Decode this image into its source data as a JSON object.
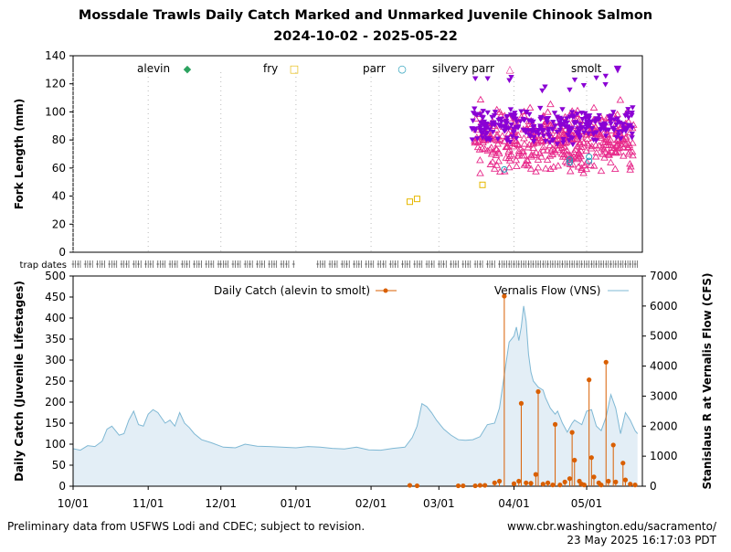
{
  "header": {
    "title": "Mossdale Trawls Daily Catch Marked and Unmarked Juvenile Chinook Salmon",
    "subtitle": "2024-10-02 - 2025-05-22"
  },
  "footer": {
    "left": "Preliminary data from USFWS Lodi and CDEC; subject to revision.",
    "right_line1": "www.cbr.washington.edu/sacramento/",
    "right_line2": "23 May 2025 16:17:03 PDT"
  },
  "colors": {
    "alevin": "#2ca25f",
    "fry": "#e6b800",
    "parr": "#1f9bb8",
    "silvery_parr": "#e7298a",
    "smolt": "#8a00d4",
    "catch": "#d95f02",
    "flow_line": "#7fb8d4",
    "flow_fill": "#e3eef6"
  },
  "chart_data": [
    {
      "type": "scatter",
      "ylabel": "Fork Length (mm)",
      "ylim": [
        0,
        140
      ],
      "yticks": [
        "0",
        "20",
        "40",
        "60",
        "80",
        "100",
        "120",
        "140"
      ],
      "legend": [
        {
          "name": "alevin",
          "marker": "◆"
        },
        {
          "name": "fry",
          "marker": "□"
        },
        {
          "name": "parr",
          "marker": "○"
        },
        {
          "name": "silvery parr",
          "marker": "△"
        },
        {
          "name": "smolt",
          "marker": "▼"
        }
      ],
      "series": [
        {
          "name": "fry",
          "points": [
            [
              "2025-02-17",
              36
            ],
            [
              "2025-02-20",
              38
            ],
            [
              "2025-03-19",
              48
            ]
          ]
        },
        {
          "name": "parr",
          "points": [
            [
              "2025-03-28",
              59
            ],
            [
              "2025-04-24",
              64
            ],
            [
              "2025-04-24",
              66
            ],
            [
              "2025-05-02",
              65
            ],
            [
              "2025-05-02",
              68
            ]
          ]
        },
        {
          "name": "silvery parr",
          "generated_range": [
            "2025-03-16",
            "2025-05-21"
          ],
          "ylim": [
            55,
            115
          ]
        },
        {
          "name": "smolt",
          "generated_range": [
            "2025-03-15",
            "2025-05-21"
          ],
          "ylim": [
            75,
            126
          ]
        }
      ]
    },
    {
      "type": "line",
      "xlabel": "",
      "ylabel": "Daily Catch (Juvenile Lifestages)",
      "y2label": "Stanislaus R at Vernalis Flow (CFS)",
      "ylim": [
        0,
        500
      ],
      "y2lim": [
        0,
        7000
      ],
      "xlim": [
        "2024-10-01",
        "2025-05-24"
      ],
      "xticks": [
        "10/01",
        "11/01",
        "12/01",
        "01/01",
        "02/01",
        "03/01",
        "04/01",
        "05/01"
      ],
      "yticks": [
        "0",
        "50",
        "100",
        "150",
        "200",
        "250",
        "300",
        "350",
        "400",
        "450",
        "500"
      ],
      "y2ticks": [
        "0",
        "1000",
        "2000",
        "3000",
        "4000",
        "5000",
        "6000",
        "7000"
      ],
      "trap_dates_label": "trap dates",
      "legend": [
        {
          "name": "Daily Catch (alevin to smolt)"
        },
        {
          "name": "Vernalis Flow (VNS)"
        }
      ],
      "series": [
        {
          "name": "Daily Catch (alevin to smolt)",
          "points": [
            [
              "2025-02-17",
              2
            ],
            [
              "2025-02-20",
              1
            ],
            [
              "2025-03-09",
              1
            ],
            [
              "2025-03-11",
              1
            ],
            [
              "2025-03-16",
              1
            ],
            [
              "2025-03-18",
              2
            ],
            [
              "2025-03-20",
              2
            ],
            [
              "2025-03-24",
              8
            ],
            [
              "2025-03-26",
              12
            ],
            [
              "2025-03-28",
              452
            ],
            [
              "2025-04-01",
              6
            ],
            [
              "2025-04-03",
              12
            ],
            [
              "2025-04-04",
              197
            ],
            [
              "2025-04-06",
              8
            ],
            [
              "2025-04-08",
              7
            ],
            [
              "2025-04-10",
              28
            ],
            [
              "2025-04-11",
              225
            ],
            [
              "2025-04-13",
              5
            ],
            [
              "2025-04-15",
              8
            ],
            [
              "2025-04-17",
              3
            ],
            [
              "2025-04-18",
              147
            ],
            [
              "2025-04-20",
              3
            ],
            [
              "2025-04-22",
              10
            ],
            [
              "2025-04-24",
              18
            ],
            [
              "2025-04-25",
              128
            ],
            [
              "2025-04-26",
              62
            ],
            [
              "2025-04-28",
              12
            ],
            [
              "2025-04-29",
              5
            ],
            [
              "2025-04-30",
              3
            ],
            [
              "2025-05-02",
              253
            ],
            [
              "2025-05-03",
              68
            ],
            [
              "2025-05-04",
              22
            ],
            [
              "2025-05-06",
              8
            ],
            [
              "2025-05-07",
              3
            ],
            [
              "2025-05-09",
              295
            ],
            [
              "2025-05-10",
              12
            ],
            [
              "2025-05-12",
              98
            ],
            [
              "2025-05-13",
              10
            ],
            [
              "2025-05-16",
              55
            ],
            [
              "2025-05-17",
              15
            ],
            [
              "2025-05-19",
              5
            ],
            [
              "2025-05-21",
              3
            ]
          ]
        },
        {
          "name": "Vernalis Flow (VNS)",
          "points": [
            [
              "2024-10-01",
              1250
            ],
            [
              "2024-10-04",
              1200
            ],
            [
              "2024-10-07",
              1350
            ],
            [
              "2024-10-10",
              1320
            ],
            [
              "2024-10-13",
              1500
            ],
            [
              "2024-10-15",
              1900
            ],
            [
              "2024-10-17",
              2000
            ],
            [
              "2024-10-20",
              1700
            ],
            [
              "2024-10-22",
              1750
            ],
            [
              "2024-10-24",
              2200
            ],
            [
              "2024-10-26",
              2500
            ],
            [
              "2024-10-28",
              2050
            ],
            [
              "2024-10-30",
              2000
            ],
            [
              "2024-11-01",
              2400
            ],
            [
              "2024-11-03",
              2550
            ],
            [
              "2024-11-05",
              2450
            ],
            [
              "2024-11-08",
              2100
            ],
            [
              "2024-11-10",
              2200
            ],
            [
              "2024-11-12",
              2000
            ],
            [
              "2024-11-14",
              2450
            ],
            [
              "2024-11-16",
              2100
            ],
            [
              "2024-11-18",
              1950
            ],
            [
              "2024-11-20",
              1750
            ],
            [
              "2024-11-23",
              1550
            ],
            [
              "2024-11-27",
              1450
            ],
            [
              "2024-12-02",
              1300
            ],
            [
              "2024-12-07",
              1280
            ],
            [
              "2024-12-11",
              1400
            ],
            [
              "2024-12-16",
              1330
            ],
            [
              "2024-12-21",
              1320
            ],
            [
              "2024-12-26",
              1300
            ],
            [
              "2025-01-01",
              1280
            ],
            [
              "2025-01-06",
              1320
            ],
            [
              "2025-01-11",
              1300
            ],
            [
              "2025-01-16",
              1260
            ],
            [
              "2025-01-21",
              1240
            ],
            [
              "2025-01-26",
              1300
            ],
            [
              "2025-01-31",
              1210
            ],
            [
              "2025-02-05",
              1200
            ],
            [
              "2025-02-10",
              1260
            ],
            [
              "2025-02-15",
              1300
            ],
            [
              "2025-02-18",
              1620
            ],
            [
              "2025-02-20",
              2000
            ],
            [
              "2025-02-22",
              2750
            ],
            [
              "2025-02-24",
              2650
            ],
            [
              "2025-02-26",
              2450
            ],
            [
              "2025-02-28",
              2200
            ],
            [
              "2025-03-03",
              1900
            ],
            [
              "2025-03-06",
              1700
            ],
            [
              "2025-03-09",
              1550
            ],
            [
              "2025-03-12",
              1530
            ],
            [
              "2025-03-15",
              1550
            ],
            [
              "2025-03-18",
              1650
            ],
            [
              "2025-03-21",
              2050
            ],
            [
              "2025-03-24",
              2100
            ],
            [
              "2025-03-26",
              2600
            ],
            [
              "2025-03-28",
              3700
            ],
            [
              "2025-03-30",
              4800
            ],
            [
              "2025-04-01",
              5000
            ],
            [
              "2025-04-02",
              5300
            ],
            [
              "2025-04-03",
              4850
            ],
            [
              "2025-04-04",
              5300
            ],
            [
              "2025-04-05",
              6000
            ],
            [
              "2025-04-06",
              5500
            ],
            [
              "2025-04-07",
              4400
            ],
            [
              "2025-04-08",
              3800
            ],
            [
              "2025-04-09",
              3500
            ],
            [
              "2025-04-11",
              3300
            ],
            [
              "2025-04-13",
              3200
            ],
            [
              "2025-04-14",
              2950
            ],
            [
              "2025-04-16",
              2600
            ],
            [
              "2025-04-18",
              2400
            ],
            [
              "2025-04-19",
              2500
            ],
            [
              "2025-04-21",
              2100
            ],
            [
              "2025-04-23",
              1800
            ],
            [
              "2025-04-25",
              2100
            ],
            [
              "2025-04-26",
              2200
            ],
            [
              "2025-04-28",
              2100
            ],
            [
              "2025-04-29",
              2050
            ],
            [
              "2025-05-01",
              2500
            ],
            [
              "2025-05-03",
              2550
            ],
            [
              "2025-05-05",
              2000
            ],
            [
              "2025-05-07",
              1850
            ],
            [
              "2025-05-09",
              2300
            ],
            [
              "2025-05-11",
              3050
            ],
            [
              "2025-05-13",
              2600
            ],
            [
              "2025-05-15",
              1750
            ],
            [
              "2025-05-17",
              2450
            ],
            [
              "2025-05-19",
              2200
            ],
            [
              "2025-05-21",
              1850
            ],
            [
              "2025-05-22",
              1750
            ]
          ]
        }
      ]
    }
  ]
}
